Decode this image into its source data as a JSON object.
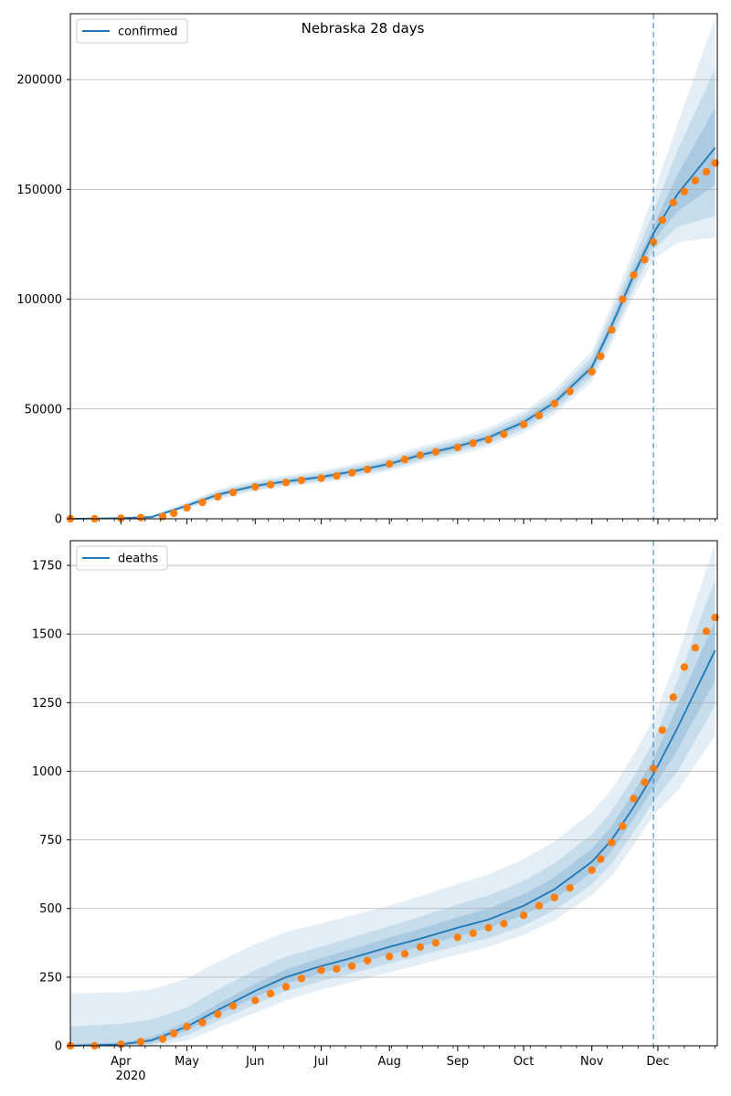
{
  "chart_data": [
    {
      "type": "line",
      "title": "Nebraska 28 days",
      "xlabel": "",
      "ylabel": "",
      "ylim": [
        0,
        230000
      ],
      "grid": "horizontal",
      "legend": {
        "placement": "top-left",
        "entries": [
          "confirmed"
        ]
      },
      "y_ticks": [
        0,
        50000,
        100000,
        150000,
        200000
      ],
      "y_tick_labels": [
        "0",
        "50000",
        "100000",
        "150000",
        "200000"
      ],
      "forecast_start": "2020-11-29",
      "series": [
        {
          "name": "confirmed",
          "kind": "model-median",
          "color": "#1f77b4",
          "x": [
            "2020-03-09",
            "2020-04-01",
            "2020-04-15",
            "2020-05-01",
            "2020-05-15",
            "2020-06-01",
            "2020-06-15",
            "2020-07-01",
            "2020-07-15",
            "2020-08-01",
            "2020-08-15",
            "2020-09-01",
            "2020-09-15",
            "2020-10-01",
            "2020-10-15",
            "2020-11-01",
            "2020-11-10",
            "2020-11-20",
            "2020-11-29",
            "2020-12-10",
            "2020-12-27"
          ],
          "values": [
            0,
            300,
            800,
            6000,
            11000,
            15000,
            17000,
            19000,
            21500,
            25000,
            29000,
            33000,
            37000,
            44000,
            53000,
            69000,
            88000,
            111000,
            130000,
            148000,
            169000
          ],
          "bands": {
            "lower_50": [
              0,
              200,
              600,
              5500,
              10300,
              14200,
              16200,
              18100,
              20500,
              23900,
              27800,
              31700,
              35600,
              42400,
              51200,
              66800,
              85200,
              107800,
              126500,
              140000,
              152000
            ],
            "upper_50": [
              0,
              400,
              1000,
              6500,
              11700,
              15800,
              17800,
              19900,
              22500,
              26100,
              30200,
              34300,
              38400,
              45600,
              54800,
              71200,
              90800,
              114200,
              133500,
              157000,
              187000
            ],
            "lower_90": [
              0,
              100,
              400,
              5000,
              9600,
              13400,
              15400,
              17200,
              19500,
              22800,
              26600,
              30400,
              34200,
              40800,
              49400,
              64600,
              82400,
              104600,
              122500,
              133000,
              138000
            ],
            "upper_90": [
              0,
              600,
              1300,
              7000,
              12500,
              16700,
              18700,
              20900,
              23600,
              27300,
              31500,
              35700,
              39900,
              47300,
              56800,
              73800,
              94000,
              118000,
              140000,
              168000,
              205000
            ],
            "lower_99": [
              0,
              50,
              200,
              4500,
              8900,
              12600,
              14500,
              16300,
              18500,
              21700,
              25400,
              29100,
              32800,
              39200,
              47600,
              62400,
              79600,
              101400,
              118000,
              126000,
              128000
            ],
            "upper_99": [
              0,
              900,
              1700,
              7600,
              13300,
              17600,
              19700,
              21900,
              24700,
              28500,
              32800,
              37100,
              41400,
              49000,
              58800,
              76400,
              97400,
              122500,
              148000,
              180000,
              228000
            ]
          }
        },
        {
          "name": "observed",
          "kind": "points",
          "color": "#ff7f0e",
          "x": [
            "2020-03-09",
            "2020-03-20",
            "2020-04-01",
            "2020-04-10",
            "2020-04-20",
            "2020-04-25",
            "2020-05-01",
            "2020-05-08",
            "2020-05-15",
            "2020-05-22",
            "2020-06-01",
            "2020-06-08",
            "2020-06-15",
            "2020-06-22",
            "2020-07-01",
            "2020-07-08",
            "2020-07-15",
            "2020-07-22",
            "2020-08-01",
            "2020-08-08",
            "2020-08-15",
            "2020-08-22",
            "2020-09-01",
            "2020-09-08",
            "2020-09-15",
            "2020-09-22",
            "2020-10-01",
            "2020-10-08",
            "2020-10-15",
            "2020-10-22",
            "2020-11-01",
            "2020-11-05",
            "2020-11-10",
            "2020-11-15",
            "2020-11-20",
            "2020-11-25",
            "2020-11-29",
            "2020-12-03",
            "2020-12-08",
            "2020-12-13",
            "2020-12-18",
            "2020-12-23",
            "2020-12-27"
          ],
          "values": [
            0,
            0,
            200,
            500,
            1000,
            2500,
            5000,
            7500,
            10000,
            12000,
            14500,
            15500,
            16500,
            17500,
            18500,
            19500,
            21000,
            22500,
            25000,
            27000,
            29000,
            30500,
            32500,
            34500,
            36000,
            38500,
            43000,
            47000,
            52500,
            58000,
            67000,
            74000,
            86000,
            100000,
            111000,
            118000,
            126000,
            136000,
            144000,
            149000,
            154000,
            158000,
            162000
          ]
        }
      ]
    },
    {
      "type": "line",
      "title": "",
      "xlabel": "",
      "ylabel": "",
      "ylim": [
        0,
        1840
      ],
      "grid": "horizontal",
      "legend": {
        "placement": "top-left",
        "entries": [
          "deaths"
        ]
      },
      "y_ticks": [
        0,
        250,
        500,
        750,
        1000,
        1250,
        1500,
        1750
      ],
      "y_tick_labels": [
        "0",
        "250",
        "500",
        "750",
        "1000",
        "1250",
        "1500",
        "1750"
      ],
      "x_ticks": [
        "2020-04-01",
        "2020-05-01",
        "2020-06-01",
        "2020-07-01",
        "2020-08-01",
        "2020-09-01",
        "2020-10-01",
        "2020-11-01",
        "2020-12-01"
      ],
      "x_tick_labels": [
        "Apr",
        "May",
        "Jun",
        "Jul",
        "Aug",
        "Sep",
        "Oct",
        "Nov",
        "Dec"
      ],
      "x_year_label": "2020",
      "forecast_start": "2020-11-29",
      "series": [
        {
          "name": "deaths",
          "kind": "model-median",
          "color": "#1f77b4",
          "x": [
            "2020-03-09",
            "2020-04-01",
            "2020-04-15",
            "2020-05-01",
            "2020-05-15",
            "2020-06-01",
            "2020-06-15",
            "2020-07-01",
            "2020-07-15",
            "2020-08-01",
            "2020-08-15",
            "2020-09-01",
            "2020-09-15",
            "2020-10-01",
            "2020-10-15",
            "2020-11-01",
            "2020-11-10",
            "2020-11-20",
            "2020-11-29",
            "2020-12-10",
            "2020-12-27"
          ],
          "values": [
            0,
            5,
            20,
            70,
            130,
            200,
            250,
            290,
            320,
            360,
            390,
            430,
            460,
            510,
            570,
            670,
            750,
            870,
            990,
            1160,
            1440
          ],
          "bands": {
            "lower_50": [
              0,
              2,
              12,
              55,
              112,
              178,
              226,
              265,
              294,
              332,
              361,
              399,
              428,
              476,
              534,
              631,
              709,
              826,
              940,
              1080,
              1330
            ],
            "upper_50": [
              8,
              12,
              32,
              88,
              152,
              226,
              278,
              320,
              352,
              394,
              426,
              468,
              500,
              552,
              614,
              718,
              800,
              924,
              1045,
              1240,
              1550
            ],
            "lower_90": [
              0,
              0,
              5,
              38,
              90,
              150,
              198,
              236,
              264,
              300,
              328,
              364,
              392,
              438,
              494,
              588,
              664,
              778,
              890,
              1000,
              1240
            ],
            "upper_90": [
              70,
              80,
              95,
              140,
              205,
              275,
              325,
              360,
              395,
              435,
              470,
              515,
              548,
              600,
              665,
              770,
              855,
              980,
              1110,
              1330,
              1700
            ],
            "lower_99": [
              0,
              0,
              0,
              18,
              65,
              120,
              165,
              205,
              232,
              268,
              296,
              332,
              360,
              404,
              458,
              548,
              620,
              730,
              840,
              930,
              1130
            ],
            "upper_99": [
              190,
              195,
              205,
              245,
              305,
              370,
              415,
              445,
              475,
              510,
              545,
              590,
              625,
              680,
              745,
              850,
              935,
              1060,
              1190,
              1420,
              1830
            ]
          }
        },
        {
          "name": "observed",
          "kind": "points",
          "color": "#ff7f0e",
          "x": [
            "2020-03-09",
            "2020-03-20",
            "2020-04-01",
            "2020-04-10",
            "2020-04-20",
            "2020-04-25",
            "2020-05-01",
            "2020-05-08",
            "2020-05-15",
            "2020-05-22",
            "2020-06-01",
            "2020-06-08",
            "2020-06-15",
            "2020-06-22",
            "2020-07-01",
            "2020-07-08",
            "2020-07-15",
            "2020-07-22",
            "2020-08-01",
            "2020-08-08",
            "2020-08-15",
            "2020-08-22",
            "2020-09-01",
            "2020-09-08",
            "2020-09-15",
            "2020-09-22",
            "2020-10-01",
            "2020-10-08",
            "2020-10-15",
            "2020-10-22",
            "2020-11-01",
            "2020-11-05",
            "2020-11-10",
            "2020-11-15",
            "2020-11-20",
            "2020-11-25",
            "2020-11-29",
            "2020-12-03",
            "2020-12-08",
            "2020-12-13",
            "2020-12-18",
            "2020-12-23",
            "2020-12-27"
          ],
          "values": [
            0,
            0,
            5,
            15,
            25,
            45,
            70,
            85,
            115,
            145,
            165,
            190,
            215,
            245,
            275,
            280,
            290,
            310,
            325,
            335,
            360,
            375,
            395,
            410,
            430,
            445,
            475,
            510,
            540,
            575,
            640,
            680,
            740,
            800,
            900,
            960,
            1010,
            1150,
            1270,
            1380,
            1450,
            1510,
            1560
          ]
        }
      ]
    }
  ]
}
